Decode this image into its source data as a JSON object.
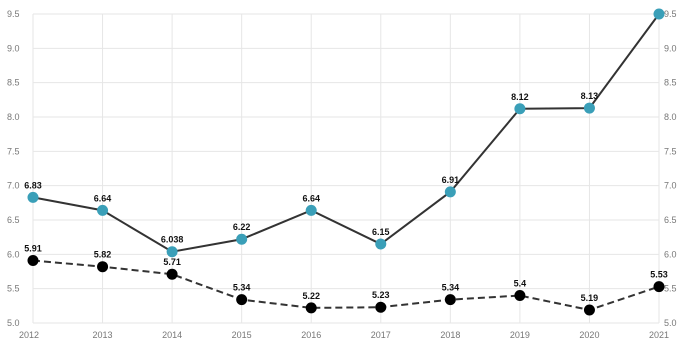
{
  "chart_data": {
    "type": "line",
    "title": "",
    "xlabel": "",
    "ylabel": "",
    "x": [
      "2012",
      "2013",
      "2014",
      "2015",
      "2016",
      "2017",
      "2018",
      "2019",
      "2020",
      "2021"
    ],
    "ylim": [
      5.0,
      9.5
    ],
    "yticks": [
      "5.0",
      "5.5",
      "6.0",
      "6.5",
      "7.0",
      "7.5",
      "8.0",
      "8.5",
      "9.0",
      "9.5"
    ],
    "grid": true,
    "legend": "none",
    "series": [
      {
        "values": [
          6.83,
          6.64,
          6.038,
          6.22,
          6.64,
          6.15,
          6.91,
          8.12,
          8.13,
          9.5
        ],
        "labels": [
          "6.83",
          "6.64",
          "6.038",
          "6.22",
          "6.64",
          "6.15",
          "6.91",
          "8.12",
          "8.13",
          ""
        ],
        "line_color": "#333333",
        "marker_color": "#3a9fb8",
        "dashed": false
      },
      {
        "values": [
          5.91,
          5.82,
          5.71,
          5.34,
          5.22,
          5.23,
          5.34,
          5.4,
          5.19,
          5.53
        ],
        "labels": [
          "5.91",
          "5.82",
          "5.71",
          "5.34",
          "5.22",
          "5.23",
          "5.34",
          "5.4",
          "5.19",
          "5.53"
        ],
        "line_color": "#333333",
        "marker_color": "#000000",
        "dashed": true
      }
    ]
  }
}
